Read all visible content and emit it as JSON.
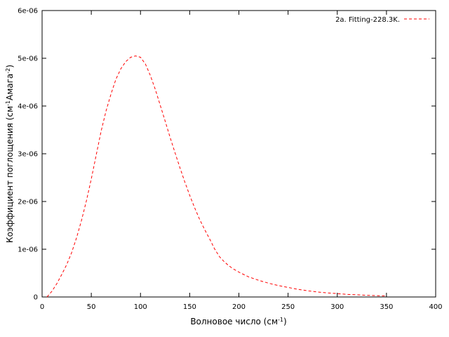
{
  "chart_data": {
    "type": "line",
    "xlabel": "Волновое число (см",
    "xlabel_sup": "-1",
    "xlabel_end": ")",
    "ylabel": "Коэффициент поглощения (см",
    "ylabel_sup1": "-1",
    "ylabel_mid": "Амага",
    "ylabel_sup2": "-2",
    "ylabel_end": ")",
    "xlim": [
      0,
      400
    ],
    "ylim": [
      0,
      6e-06
    ],
    "xticks": [
      0,
      50,
      100,
      150,
      200,
      250,
      300,
      350,
      400
    ],
    "xtick_labels": [
      "0",
      "50",
      "100",
      "150",
      "200",
      "250",
      "300",
      "350",
      "400"
    ],
    "yticks": [
      0,
      1e-06,
      2e-06,
      3e-06,
      4e-06,
      5e-06,
      6e-06
    ],
    "ytick_labels": [
      "0",
      "1e-06",
      "2e-06",
      "3e-06",
      "4e-06",
      "5e-06",
      "6e-06"
    ],
    "grid": false,
    "legend_position": "top-right",
    "series": [
      {
        "name": "2a. Fitting-228.3K.",
        "color": "#ff0000",
        "style": "dashed",
        "x": [
          5,
          10,
          15,
          20,
          25,
          30,
          35,
          40,
          45,
          50,
          55,
          60,
          65,
          70,
          75,
          80,
          85,
          90,
          95,
          100,
          105,
          110,
          115,
          120,
          125,
          130,
          135,
          140,
          145,
          150,
          155,
          160,
          165,
          170,
          175,
          180,
          185,
          190,
          195,
          200,
          210,
          220,
          230,
          240,
          250,
          260,
          270,
          280,
          290,
          300,
          310,
          320,
          330,
          340,
          350
        ],
        "y": [
          0.0,
          1.2e-07,
          2.8e-07,
          4.7e-07,
          6.8e-07,
          9.3e-07,
          1.24e-06,
          1.6e-06,
          2.01e-06,
          2.47e-06,
          2.97e-06,
          3.47e-06,
          3.9e-06,
          4.25e-06,
          4.56e-06,
          4.78e-06,
          4.93e-06,
          5.02e-06,
          5.05e-06,
          5.02e-06,
          4.88e-06,
          4.64e-06,
          4.35e-06,
          4.02e-06,
          3.69e-06,
          3.35e-06,
          3.03e-06,
          2.71e-06,
          2.41e-06,
          2.13e-06,
          1.87e-06,
          1.63e-06,
          1.42e-06,
          1.23e-06,
          1.02e-06,
          8.5e-07,
          7.4e-07,
          6.5e-07,
          5.8e-07,
          5.2e-07,
          4.2e-07,
          3.5e-07,
          2.9e-07,
          2.4e-07,
          2e-07,
          1.6e-07,
          1.3e-07,
          1.05e-07,
          8.5e-08,
          7e-08,
          5.5e-08,
          4.5e-08,
          3.5e-08,
          2.8e-08,
          2.2e-08
        ]
      }
    ]
  }
}
